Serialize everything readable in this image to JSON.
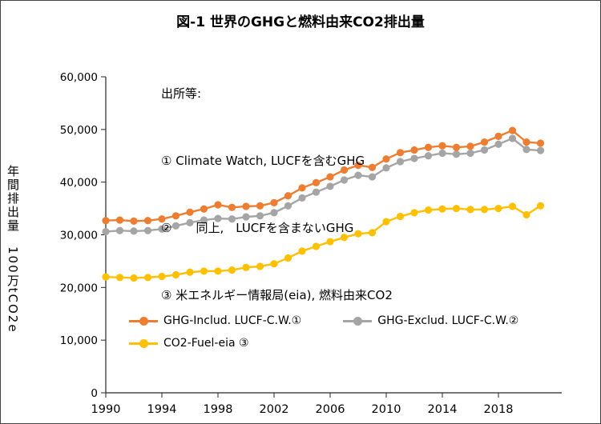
{
  "title": "図-1 世界のGHGと燃料由来CO2排出量",
  "notes": {
    "header": "出所等:",
    "lines": [
      "① Climate Watch, LUCFを含むGHG",
      "②　　同上,　LUCFを含まないGHG",
      "③ 米エネルギー情報局(eia), 燃料由来CO2"
    ]
  },
  "y_axis_title": "年間排出量　100万tCO2e",
  "chart_data": {
    "type": "line",
    "title": "図-1 世界のGHGと燃料由来CO2排出量",
    "xlabel": "",
    "ylabel": "年間排出量 100万tCO2e",
    "ylim": [
      0,
      60000
    ],
    "ytick_interval": 10000,
    "ytick_labels": [
      "0",
      "10,000",
      "20,000",
      "30,000",
      "40,000",
      "50,000",
      "60,000"
    ],
    "xticks": [
      1990,
      1994,
      1998,
      2002,
      2006,
      2010,
      2014,
      2018
    ],
    "grid": false,
    "legend_position": "inside-bottom-left",
    "marker": "circle",
    "x": [
      1990,
      1991,
      1992,
      1993,
      1994,
      1995,
      1996,
      1997,
      1998,
      1999,
      2000,
      2001,
      2002,
      2003,
      2004,
      2005,
      2006,
      2007,
      2008,
      2009,
      2010,
      2011,
      2012,
      2013,
      2014,
      2015,
      2016,
      2017,
      2018,
      2019,
      2020,
      2021
    ],
    "series": [
      {
        "name": "GHG-Includ. LUCF-C.W.①",
        "color": "#ED7D31",
        "values": [
          32700,
          32800,
          32600,
          32700,
          33000,
          33600,
          34300,
          34900,
          35700,
          35200,
          35400,
          35500,
          36100,
          37400,
          38900,
          39900,
          41000,
          42300,
          43200,
          42800,
          44400,
          45600,
          46100,
          46600,
          46900,
          46600,
          46800,
          47600,
          48700,
          49800,
          47600,
          47400
        ]
      },
      {
        "name": "GHG-Exclud. LUCF-C.W.②",
        "color": "#A5A5A5",
        "values": [
          30600,
          30800,
          30700,
          30800,
          31100,
          31700,
          32300,
          32800,
          33100,
          33000,
          33400,
          33600,
          34200,
          35500,
          37000,
          38100,
          39200,
          40400,
          41300,
          41000,
          42700,
          43900,
          44500,
          45000,
          45500,
          45300,
          45500,
          46100,
          47200,
          48300,
          46200,
          46000
        ]
      },
      {
        "name": "CO2-Fuel-eia ③",
        "color": "#FFC000",
        "values": [
          22000,
          21900,
          21800,
          21900,
          22100,
          22400,
          22900,
          23100,
          23100,
          23300,
          23800,
          24000,
          24500,
          25600,
          26900,
          27800,
          28700,
          29500,
          30200,
          30400,
          32500,
          33500,
          34200,
          34700,
          34900,
          35000,
          34800,
          34800,
          35000,
          35400,
          33800,
          35500
        ]
      }
    ]
  }
}
